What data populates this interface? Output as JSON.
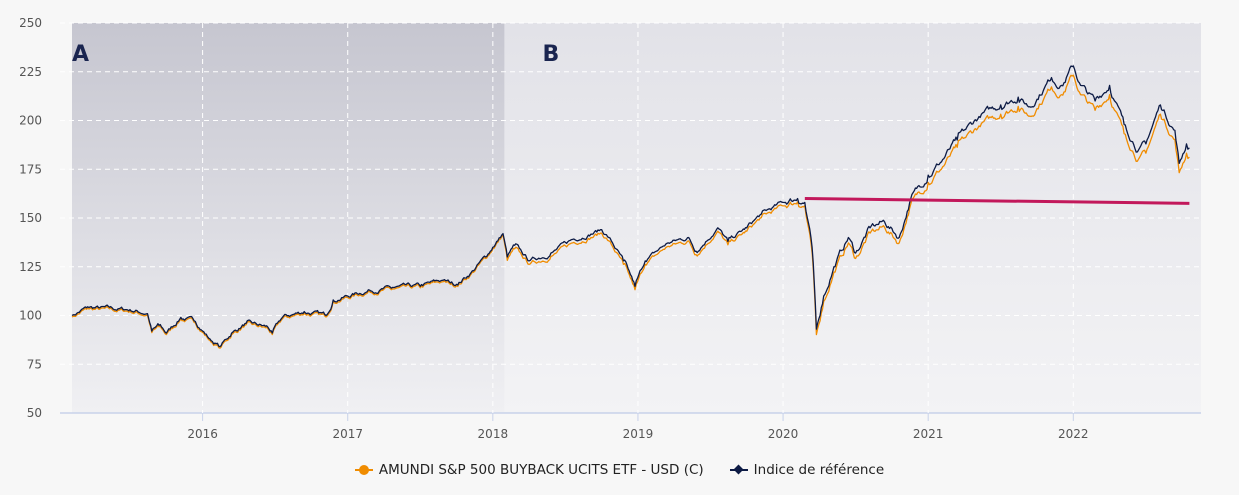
{
  "chart_data": {
    "type": "line",
    "title": "",
    "xlabel": "",
    "ylabel": "",
    "ylim": [
      50,
      250
    ],
    "xlim": [
      2015.1,
      2022.88
    ],
    "yticks": [
      "50",
      "75",
      "100",
      "125",
      "150",
      "175",
      "200",
      "225",
      "250"
    ],
    "xticks": [
      "2016",
      "2017",
      "2018",
      "2019",
      "2020",
      "2021",
      "2022"
    ],
    "grid": true,
    "legend_placement": "bottom",
    "regions": [
      {
        "label": "A",
        "from": 2015.1,
        "to": 2018.08,
        "color": "#c6c6d0"
      },
      {
        "label": "B",
        "from": 2018.08,
        "to": 2022.88,
        "color": "#e2e2e8"
      }
    ],
    "reference_line": {
      "from": [
        2020.15,
        160
      ],
      "to": [
        2022.8,
        157.5
      ],
      "color": "#c2185b"
    },
    "x": [
      2015.1,
      2015.2,
      2015.5,
      2015.62,
      2015.65,
      2015.7,
      2015.75,
      2015.85,
      2015.95,
      2016.05,
      2016.12,
      2016.2,
      2016.3,
      2016.45,
      2016.48,
      2016.55,
      2016.7,
      2016.85,
      2016.9,
      2017.0,
      2017.15,
      2017.3,
      2017.5,
      2017.65,
      2017.75,
      2017.85,
      2017.95,
      2018.0,
      2018.07,
      2018.1,
      2018.15,
      2018.25,
      2018.4,
      2018.55,
      2018.75,
      2018.8,
      2018.9,
      2018.98,
      2019.05,
      2019.2,
      2019.35,
      2019.4,
      2019.55,
      2019.62,
      2019.75,
      2019.85,
      2020.0,
      2020.1,
      2020.15,
      2020.2,
      2020.23,
      2020.28,
      2020.35,
      2020.45,
      2020.5,
      2020.6,
      2020.7,
      2020.8,
      2020.88,
      2021.0,
      2021.1,
      2021.2,
      2021.35,
      2021.5,
      2021.62,
      2021.7,
      2021.85,
      2021.92,
      2022.0,
      2022.05,
      2022.15,
      2022.25,
      2022.35,
      2022.45,
      2022.5,
      2022.6,
      2022.7,
      2022.73,
      2022.78,
      2022.8
    ],
    "series": [
      {
        "name": "AMUNDI S&P 500 BUYBACK UCITS ETF - USD (C)",
        "color": "#f08c00",
        "values": [
          100,
          104,
          103,
          101,
          92,
          95,
          91,
          99,
          97,
          88,
          84,
          91,
          96,
          94,
          91,
          99,
          102,
          100,
          108,
          110,
          113,
          114,
          115,
          118,
          116,
          122,
          130,
          135,
          142,
          129,
          135,
          127,
          131,
          138,
          143,
          139,
          127,
          114,
          127,
          136,
          139,
          132,
          144,
          137,
          144,
          151,
          157,
          159,
          157,
          133,
          91,
          108,
          123,
          138,
          130,
          143,
          146,
          138,
          158,
          169,
          177,
          187,
          198,
          204,
          208,
          203,
          218,
          214,
          224,
          214,
          206,
          214,
          194,
          181,
          184,
          204,
          191,
          174,
          184,
          182
        ]
      },
      {
        "name": "Indice de référence",
        "color": "#0d1b45",
        "values": [
          100,
          104,
          103,
          101,
          92,
          95,
          91,
          99,
          97,
          88,
          84,
          91,
          96,
          94,
          91,
          99,
          102,
          100,
          108,
          110,
          113,
          114,
          115,
          118,
          116,
          122,
          130,
          135,
          142,
          130,
          136,
          128,
          132,
          139,
          144,
          140,
          128,
          115,
          128,
          137,
          140,
          133,
          145,
          138,
          145,
          152,
          158,
          160,
          158,
          135,
          93,
          110,
          125,
          140,
          132,
          145,
          148,
          140,
          160,
          172,
          180,
          190,
          202,
          208,
          212,
          207,
          222,
          218,
          228,
          218,
          210,
          218,
          198,
          185,
          188,
          208,
          195,
          178,
          188,
          186
        ]
      }
    ]
  }
}
